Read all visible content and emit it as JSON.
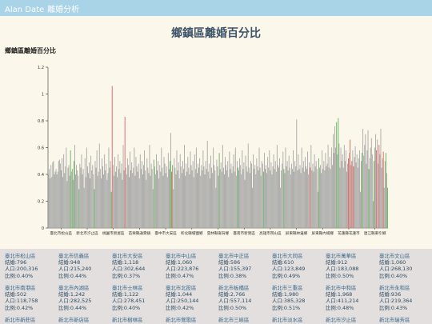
{
  "app": {
    "brand": "Alan Date",
    "section": "離婚分析"
  },
  "page_title": "鄉鎮區離婚百分比",
  "chart_data": {
    "type": "bar",
    "title": "鄉鎮區離婚百分比",
    "ylim": [
      0,
      1.2
    ],
    "yticks": [
      "0",
      "0.2",
      "0.4",
      "0.6",
      "0.8",
      "1",
      "1.2"
    ],
    "xtick_labels": [
      "臺北市松山區",
      "新北市汐止區",
      "桃園市新屋區",
      "苗栗縣通霄鎮",
      "臺中市大安區",
      "彰化縣埔鹽鄉",
      "雲林縣崙背鄉",
      "臺南市新營區",
      "高雄市岡山區",
      "屏東縣林邊鄉",
      "屏東縣內埔鄉",
      "花蓮縣花蓮市",
      "連江縣東引鄉"
    ],
    "colors": {
      "normal": "#a5a5a5",
      "high": "#e05a5a",
      "low": "#5eae5e"
    },
    "values": [
      0.4,
      0.44,
      0.37,
      0.47,
      0.38,
      0.49,
      0.5,
      0.4,
      0.42,
      0.44,
      0.4,
      0.42,
      0.5,
      0.51,
      0.48,
      0.43,
      0.52,
      0.38,
      0.55,
      0.41,
      0.46,
      0.6,
      0.35,
      0.45,
      0.47,
      0.39,
      0.58,
      0.42,
      0.44,
      0.36,
      0.5,
      0.62,
      0.4,
      0.47,
      0.43,
      0.39,
      0.29,
      0.48,
      0.45,
      0.55,
      0.4,
      0.44,
      0.3,
      0.52,
      0.38,
      0.6,
      0.46,
      0.41,
      0.49,
      0.37,
      0.54,
      0.43,
      0.47,
      0.4,
      0.29,
      0.5,
      0.45,
      0.58,
      0.39,
      0.42,
      0.63,
      0.44,
      0.37,
      0.52,
      0.46,
      0.4,
      0.55,
      0.43,
      0.48,
      0.36,
      0.41,
      0.6,
      0.45,
      0.5,
      0.27,
      1.06,
      0.47,
      0.39,
      0.53,
      0.42,
      0.46,
      0.38,
      0.55,
      0.44,
      0.5,
      0.41,
      0.48,
      0.36,
      0.62,
      0.43,
      0.83,
      0.45,
      0.4,
      0.52,
      0.47,
      0.38,
      0.57,
      0.43,
      0.49,
      0.41,
      0.45,
      0.6,
      0.39,
      0.53,
      0.46,
      0.42,
      0.48,
      0.37,
      0.55,
      0.44,
      0.5,
      0.4,
      0.47,
      0.58,
      0.43,
      0.36,
      0.52,
      0.45,
      0.41,
      0.62,
      0.39,
      0.48,
      0.44,
      0.29,
      0.51,
      0.46,
      0.4,
      0.55,
      0.43,
      0.5,
      0.37,
      0.47,
      0.42,
      0.6,
      0.45,
      0.39,
      0.53,
      0.48,
      0.41,
      0.46,
      0.38,
      0.56,
      0.44,
      0.5,
      0.71,
      0.42,
      0.47,
      0.29,
      0.52,
      0.45,
      0.4,
      0.58,
      0.43,
      0.49,
      0.37,
      0.55,
      0.46,
      0.41,
      0.5,
      0.44,
      0.62,
      0.39,
      0.48,
      0.42,
      0.53,
      0.45,
      0.4,
      0.57,
      0.47,
      0.43,
      0.5,
      0.38,
      0.55,
      0.44,
      0.6,
      0.41,
      0.48,
      0.45,
      0.52,
      0.39,
      0.47,
      0.43,
      0.58,
      0.46,
      0.4,
      0.5,
      0.44,
      0.65,
      0.42,
      0.48,
      0.37,
      0.54,
      0.45,
      0.41,
      0.6,
      0.47,
      0.43,
      0.3,
      0.51,
      0.46,
      0.39,
      0.56,
      0.44,
      0.49,
      0.42,
      0.62,
      0.45,
      0.4,
      0.53,
      0.47,
      0.43,
      0.5,
      0.38,
      0.57,
      0.44,
      0.48,
      0.41,
      0.46,
      0.55,
      0.42,
      0.6,
      0.39,
      0.5,
      0.45,
      0.43,
      0.52,
      0.47,
      0.4,
      0.58,
      0.44,
      0.49,
      0.36,
      0.54,
      0.46,
      0.42,
      0.63,
      0.45,
      0.41,
      0.5,
      0.48,
      0.3,
      0.55,
      0.44,
      0.47,
      0.4,
      0.52,
      0.46,
      0.43,
      0.6,
      0.45,
      0.39,
      0.5,
      0.48,
      0.42,
      0.56,
      0.44,
      0.47,
      0.41,
      0.53,
      0.45,
      0.58,
      0.43,
      0.49,
      0.4,
      0.46,
      0.55,
      0.44,
      0.5,
      0.42,
      0.62,
      0.47,
      0.45,
      0.52,
      0.3,
      0.43,
      0.48,
      0.57,
      0.44,
      0.41,
      0.6,
      0.46,
      0.5,
      0.43,
      0.54,
      0.45,
      0.4,
      0.48,
      0.44,
      0.58,
      0.42,
      0.5,
      0.46,
      0.81,
      0.43,
      0.55,
      0.44,
      0.47,
      0.41,
      0.6,
      0.45,
      0.5,
      0.42,
      0.53,
      0.46,
      0.44,
      0.57,
      0.4,
      0.49,
      0.45,
      0.62,
      0.43,
      0.48,
      0.42,
      0.55,
      0.46,
      0.5,
      0.44,
      0.27,
      0.52,
      0.45,
      0.47,
      0.41,
      0.58,
      0.44,
      0.5,
      0.43,
      0.56,
      0.46,
      0.48,
      0.62,
      0.45,
      0.53,
      0.44,
      0.6,
      0.47,
      0.7,
      0.56,
      0.76,
      0.6,
      0.79,
      0.55,
      0.82,
      0.63,
      0.45,
      0.6,
      0.5,
      0.55,
      0.45,
      0.62,
      0.5,
      0.58,
      0.42,
      0.48,
      0.52,
      0.56,
      0.66,
      0.47,
      0.5,
      0.58,
      0.46,
      0.53,
      0.61,
      0.49,
      0.55,
      0.45,
      0.52,
      0.58,
      0.27,
      0.5,
      0.56,
      0.74,
      0.54,
      0.62,
      0.7,
      0.48,
      0.58,
      0.73,
      0.44,
      0.52,
      0.6,
      0.67,
      0.55,
      0.2,
      0.5,
      0.6,
      0.7,
      0.58,
      0.66,
      0.48,
      0.62,
      0.55,
      0.74,
      0.45,
      0.52,
      0.57,
      0.3,
      0.5,
      0.56,
      0.41,
      0.3
    ],
    "high_indices": [
      75,
      90,
      145,
      308,
      353,
      355,
      357,
      359,
      386,
      389,
      394
    ],
    "low_indices": [
      26,
      28,
      30,
      36,
      54,
      74,
      124,
      143,
      146,
      201,
      223,
      253,
      277,
      318,
      339,
      341,
      369,
      377,
      383,
      397,
      399
    ]
  },
  "stats": [
    {
      "name": "臺北市松山區",
      "marriages": "結婚:796",
      "population": "人口:200,316",
      "ratio": "比例:0.40%"
    },
    {
      "name": "臺北市信義區",
      "marriages": "結婚:948",
      "population": "人口:215,240",
      "ratio": "比例:0.44%"
    },
    {
      "name": "臺北市大安區",
      "marriages": "結婚:1,118",
      "population": "人口:302,644",
      "ratio": "比例:0.37%"
    },
    {
      "name": "臺北市中山區",
      "marriages": "結婚:1,060",
      "population": "人口:223,876",
      "ratio": "比例:0.47%"
    },
    {
      "name": "臺北市中正區",
      "marriages": "結婚:586",
      "population": "人口:155,397",
      "ratio": "比例:0.38%"
    },
    {
      "name": "臺北市大同區",
      "marriages": "結婚:610",
      "population": "人口:123,849",
      "ratio": "比例:0.49%"
    },
    {
      "name": "臺北市萬華區",
      "marriages": "結婚:912",
      "population": "人口:183,088",
      "ratio": "比例:0.50%"
    },
    {
      "name": "臺北市文山區",
      "marriages": "結婚:1,060",
      "population": "人口:268,130",
      "ratio": "比例:0.40%"
    },
    {
      "name": "臺北市南港區",
      "marriages": "結婚:502",
      "population": "人口:118,758",
      "ratio": "比例:0.42%"
    },
    {
      "name": "臺北市內湖區",
      "marriages": "結婚:1,242",
      "population": "人口:282,525",
      "ratio": "比例:0.44%"
    },
    {
      "name": "臺北市士林區",
      "marriages": "結婚:1,122",
      "population": "人口:278,451",
      "ratio": "比例:0.40%"
    },
    {
      "name": "臺北市北投區",
      "marriages": "結婚:1,044",
      "population": "人口:250,144",
      "ratio": "比例:0.42%"
    },
    {
      "name": "新北市板橋區",
      "marriages": "結婚:2,766",
      "population": "人口:557,114",
      "ratio": "比例:0.50%"
    },
    {
      "name": "新北市三重區",
      "marriages": "結婚:1,980",
      "population": "人口:385,328",
      "ratio": "比例:0.51%"
    },
    {
      "name": "新北市中和區",
      "marriages": "結婚:1,968",
      "population": "人口:411,214",
      "ratio": "比例:0.48%"
    },
    {
      "name": "新北市永和區",
      "marriages": "結婚:936",
      "population": "人口:219,364",
      "ratio": "比例:0.43%"
    },
    {
      "name": "新北市新莊區",
      "marriages": "",
      "population": "",
      "ratio": ""
    },
    {
      "name": "新北市新店區",
      "marriages": "",
      "population": "",
      "ratio": ""
    },
    {
      "name": "新北市樹林區",
      "marriages": "",
      "population": "",
      "ratio": ""
    },
    {
      "name": "新北市鶯歌區",
      "marriages": "",
      "population": "",
      "ratio": ""
    },
    {
      "name": "新北市三峽區",
      "marriages": "",
      "population": "",
      "ratio": ""
    },
    {
      "name": "新北市淡水區",
      "marriages": "",
      "population": "",
      "ratio": ""
    },
    {
      "name": "新北市汐止區",
      "marriages": "",
      "population": "",
      "ratio": ""
    },
    {
      "name": "新北市瑞芳區",
      "marriages": "",
      "population": "",
      "ratio": ""
    }
  ]
}
